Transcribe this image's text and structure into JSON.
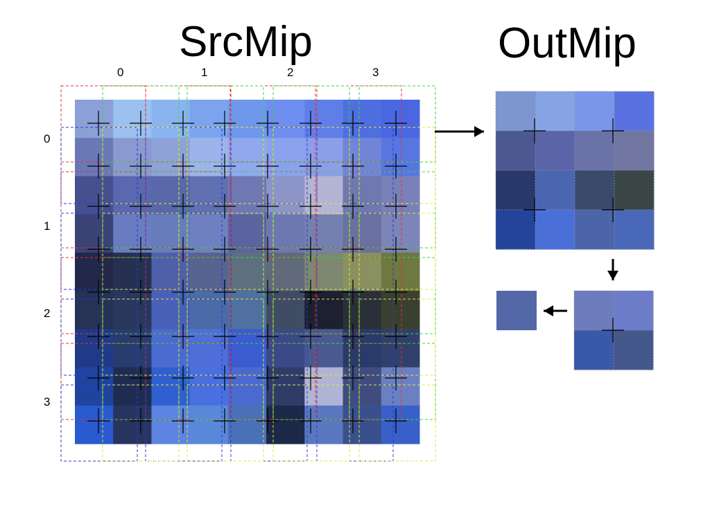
{
  "titles": {
    "src": "SrcMip",
    "out": "OutMip"
  },
  "column_labels": [
    "0",
    "1",
    "2",
    "3"
  ],
  "row_labels": [
    "0",
    "1",
    "2",
    "3"
  ],
  "colors": {
    "guide_red": "#e53030",
    "guide_green": "#3ad83a",
    "guide_blue": "#2a3ad8",
    "guide_yellow": "#e8e33a",
    "marker": "#000000",
    "arrow": "#000000"
  },
  "src_mip": {
    "rows": 9,
    "cols": 9,
    "pixels": [
      [
        "#8aa0d6",
        "#9cc0f0",
        "#8ab4f0",
        "#7ca4ee",
        "#6f97ec",
        "#6e8ef0",
        "#5f7ee8",
        "#4f6fe0",
        "#4a66e0"
      ],
      [
        "#6b78b8",
        "#8a9ad0",
        "#8fa2d8",
        "#9cb4ea",
        "#90a8ee",
        "#8aa2ee",
        "#8b9ee8",
        "#7184d8",
        "#5876e0"
      ],
      [
        "#46508e",
        "#5a68b0",
        "#5868a8",
        "#6070b0",
        "#7078b4",
        "#8c94c8",
        "#b4b4d4",
        "#7078b0",
        "#7a80b8"
      ],
      [
        "#3a4276",
        "#6a7cc0",
        "#687cbc",
        "#6e80c0",
        "#5c64a0",
        "#6e78b0",
        "#7480b0",
        "#6a70a0",
        "#7c84b8"
      ],
      [
        "#22284a",
        "#263050",
        "#5060a8",
        "#566490",
        "#5c7080",
        "#606a7a",
        "#7c8870",
        "#8a9060",
        "#6e7840"
      ],
      [
        "#263256",
        "#28385c",
        "#4860b8",
        "#4a6aa8",
        "#5070a0",
        "#404c64",
        "#1c2030",
        "#2a3038",
        "#3a4030"
      ],
      [
        "#203a88",
        "#283c70",
        "#4a6cd0",
        "#4f6fd8",
        "#3a5cd0",
        "#3a4a88",
        "#4a5a90",
        "#2a3a6a",
        "#30406a"
      ],
      [
        "#1e44a0",
        "#1e2c50",
        "#3060d0",
        "#4a70e0",
        "#4a6ad0",
        "#303c68",
        "#b0b4d4",
        "#404c80",
        "#6a80c0"
      ],
      [
        "#2a5ad0",
        "#283460",
        "#5c84e0",
        "#5a88d8",
        "#4a70b8",
        "#1c2848",
        "#5a78c0",
        "#3a508c",
        "#3860c8"
      ]
    ]
  },
  "out_mip_4x4": {
    "rows": 4,
    "cols": 4,
    "pixels": [
      [
        "#7c96d2",
        "#86a4e4",
        "#7a96e8",
        "#5a72e0"
      ],
      [
        "#4c5890",
        "#5c64a8",
        "#6a72a8",
        "#7076a0"
      ],
      [
        "#28386a",
        "#4a66b0",
        "#3a4a6c",
        "#3a4646"
      ],
      [
        "#24449c",
        "#4a70d8",
        "#4c64a8",
        "#4a68b8"
      ]
    ]
  },
  "out_mip_2x2": {
    "rows": 2,
    "cols": 2,
    "pixels": [
      [
        "#6c7cbc",
        "#6c7cc8"
      ],
      [
        "#3a58a8",
        "#44588c"
      ]
    ]
  },
  "out_mip_1x1": {
    "color": "#5468a8"
  }
}
